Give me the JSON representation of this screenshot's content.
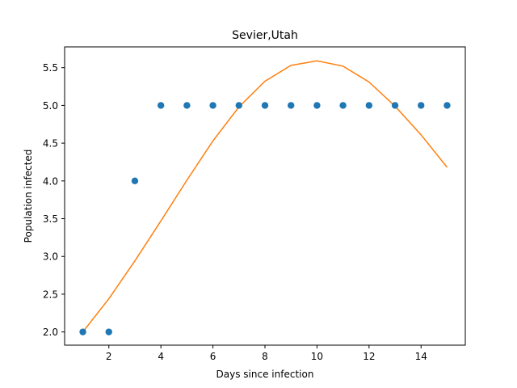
{
  "chart_data": {
    "type": "scatter",
    "title": "Sevier,Utah",
    "xlabel": "Days since infection",
    "ylabel": "Population infected",
    "xlim": [
      0.3,
      15.7
    ],
    "ylim": [
      1.825,
      5.775
    ],
    "xticks": [
      2,
      4,
      6,
      8,
      10,
      12,
      14
    ],
    "yticks": [
      2.0,
      2.5,
      3.0,
      3.5,
      4.0,
      4.5,
      5.0,
      5.5
    ],
    "grid": false,
    "series": [
      {
        "type": "scatter",
        "color": "#1f77b4",
        "x": [
          1,
          2,
          3,
          4,
          5,
          6,
          7,
          8,
          9,
          10,
          11,
          12,
          13,
          14,
          15
        ],
        "y": [
          2,
          2,
          4,
          5,
          5,
          5,
          5,
          5,
          5,
          5,
          5,
          5,
          5,
          5,
          5
        ]
      },
      {
        "type": "line",
        "color": "#ff7f0e",
        "x": [
          1,
          2,
          3,
          4,
          5,
          6,
          7,
          8,
          9,
          10,
          11,
          12,
          13,
          14,
          15
        ],
        "y": [
          2.0,
          2.44,
          2.94,
          3.47,
          4.01,
          4.53,
          4.98,
          5.32,
          5.53,
          5.59,
          5.52,
          5.31,
          4.99,
          4.61,
          4.18
        ]
      }
    ]
  }
}
